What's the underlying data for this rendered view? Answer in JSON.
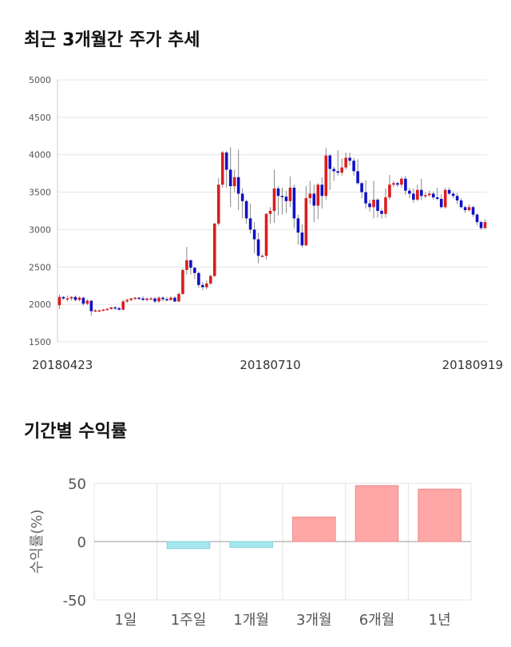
{
  "sections": {
    "price_title": "최근 3개월간 주가 추세",
    "return_title": "기간별 수익률"
  },
  "colors": {
    "up": "#dd1c1c",
    "down": "#1010c8",
    "wick": "#888888",
    "pos_bar": "#ffa6a6",
    "neg_bar": "#a6e8f0",
    "grid": "#e4e4e4"
  },
  "chart_data": [
    {
      "type": "candlestick",
      "title": "최근 3개월간 주가 추세",
      "y_ticks": [
        1500,
        2000,
        2500,
        3000,
        3500,
        4000,
        4500,
        5000
      ],
      "ylim": [
        1500,
        5000
      ],
      "x_tick_labels": [
        "20180423",
        "20180710",
        "20180919"
      ],
      "x_tick_index": [
        0,
        53,
        106
      ],
      "grid": true,
      "candles": [
        [
          1990,
          2100,
          1940,
          2130
        ],
        [
          2100,
          2080,
          2060,
          2110
        ],
        [
          2080,
          2080,
          2040,
          2120
        ],
        [
          2080,
          2100,
          2050,
          2110
        ],
        [
          2100,
          2060,
          2040,
          2120
        ],
        [
          2060,
          2090,
          2040,
          2110
        ],
        [
          2090,
          2010,
          1980,
          2100
        ],
        [
          2010,
          2050,
          1990,
          2070
        ],
        [
          2050,
          1910,
          1850,
          2060
        ],
        [
          1910,
          1920,
          1900,
          1940
        ],
        [
          1920,
          1920,
          1900,
          1930
        ],
        [
          1920,
          1930,
          1910,
          1940
        ],
        [
          1930,
          1940,
          1920,
          1950
        ],
        [
          1940,
          1960,
          1930,
          1970
        ],
        [
          1960,
          1950,
          1930,
          1980
        ],
        [
          1950,
          1930,
          1920,
          1970
        ],
        [
          1930,
          2040,
          1920,
          2060
        ],
        [
          2040,
          2060,
          2020,
          2080
        ],
        [
          2060,
          2080,
          2040,
          2090
        ],
        [
          2080,
          2090,
          2060,
          2100
        ],
        [
          2090,
          2080,
          2060,
          2100
        ],
        [
          2080,
          2060,
          2050,
          2110
        ],
        [
          2060,
          2080,
          2040,
          2090
        ],
        [
          2080,
          2080,
          2060,
          2100
        ],
        [
          2080,
          2040,
          2020,
          2100
        ],
        [
          2040,
          2090,
          2020,
          2110
        ],
        [
          2090,
          2070,
          2040,
          2110
        ],
        [
          2070,
          2060,
          2040,
          2100
        ],
        [
          2060,
          2090,
          2050,
          2110
        ],
        [
          2090,
          2040,
          2030,
          2110
        ],
        [
          2040,
          2140,
          2030,
          2160
        ],
        [
          2140,
          2460,
          2130,
          2480
        ],
        [
          2460,
          2590,
          2400,
          2770
        ],
        [
          2590,
          2490,
          2400,
          2600
        ],
        [
          2490,
          2420,
          2340,
          2500
        ],
        [
          2420,
          2260,
          2220,
          2440
        ],
        [
          2260,
          2230,
          2190,
          2300
        ],
        [
          2230,
          2280,
          2200,
          2320
        ],
        [
          2280,
          2380,
          2260,
          2400
        ],
        [
          2380,
          3080,
          2370,
          3090
        ],
        [
          3080,
          3600,
          3050,
          3690
        ],
        [
          3600,
          4030,
          3560,
          4050
        ],
        [
          4030,
          3800,
          3560,
          4050
        ],
        [
          3800,
          3580,
          3300,
          4100
        ],
        [
          3580,
          3700,
          3500,
          3800
        ],
        [
          3700,
          3480,
          3260,
          4070
        ],
        [
          3480,
          3380,
          3150,
          3550
        ],
        [
          3380,
          3150,
          3080,
          3400
        ],
        [
          3150,
          3000,
          2950,
          3350
        ],
        [
          3000,
          2870,
          2680,
          3100
        ],
        [
          2870,
          2650,
          2550,
          2960
        ],
        [
          2650,
          2650,
          2630,
          2670
        ],
        [
          2650,
          3210,
          2600,
          3220
        ],
        [
          3210,
          3250,
          3080,
          3300
        ],
        [
          3250,
          3550,
          3090,
          3800
        ],
        [
          3550,
          3450,
          3190,
          3580
        ],
        [
          3450,
          3440,
          3200,
          3560
        ],
        [
          3440,
          3380,
          3220,
          3520
        ],
        [
          3380,
          3560,
          3300,
          3710
        ],
        [
          3560,
          3150,
          3020,
          3600
        ],
        [
          3150,
          2960,
          2800,
          3200
        ],
        [
          2960,
          2790,
          2760,
          3070
        ],
        [
          2790,
          3420,
          2780,
          3580
        ],
        [
          3420,
          3480,
          3340,
          3650
        ],
        [
          3480,
          3320,
          3100,
          3600
        ],
        [
          3320,
          3600,
          3140,
          3620
        ],
        [
          3600,
          3450,
          3280,
          3700
        ],
        [
          3450,
          3990,
          3400,
          4090
        ],
        [
          3990,
          3810,
          3530,
          4010
        ],
        [
          3810,
          3780,
          3650,
          3840
        ],
        [
          3780,
          3760,
          3720,
          4060
        ],
        [
          3760,
          3830,
          3720,
          3950
        ],
        [
          3830,
          3960,
          3800,
          4030
        ],
        [
          3960,
          3920,
          3860,
          4030
        ],
        [
          3920,
          3780,
          3720,
          3960
        ],
        [
          3780,
          3620,
          3600,
          3940
        ],
        [
          3620,
          3500,
          3420,
          3640
        ],
        [
          3500,
          3350,
          3280,
          3660
        ],
        [
          3350,
          3300,
          3240,
          3400
        ],
        [
          3300,
          3400,
          3150,
          3650
        ],
        [
          3400,
          3250,
          3160,
          3420
        ],
        [
          3250,
          3210,
          3150,
          3280
        ],
        [
          3210,
          3430,
          3160,
          3550
        ],
        [
          3430,
          3600,
          3400,
          3730
        ],
        [
          3600,
          3620,
          3570,
          3650
        ],
        [
          3620,
          3600,
          3570,
          3640
        ],
        [
          3600,
          3680,
          3560,
          3700
        ],
        [
          3680,
          3520,
          3460,
          3720
        ],
        [
          3520,
          3480,
          3420,
          3560
        ],
        [
          3480,
          3400,
          3360,
          3550
        ],
        [
          3400,
          3530,
          3380,
          3600
        ],
        [
          3530,
          3450,
          3390,
          3680
        ],
        [
          3450,
          3460,
          3420,
          3500
        ],
        [
          3460,
          3480,
          3440,
          3520
        ],
        [
          3480,
          3430,
          3400,
          3510
        ],
        [
          3430,
          3410,
          3390,
          3560
        ],
        [
          3410,
          3300,
          3280,
          3470
        ],
        [
          3300,
          3530,
          3280,
          3560
        ],
        [
          3530,
          3480,
          3460,
          3560
        ],
        [
          3480,
          3450,
          3420,
          3510
        ],
        [
          3450,
          3390,
          3340,
          3490
        ],
        [
          3390,
          3300,
          3280,
          3420
        ],
        [
          3300,
          3260,
          3220,
          3320
        ],
        [
          3260,
          3300,
          3240,
          3340
        ],
        [
          3300,
          3200,
          3170,
          3320
        ],
        [
          3200,
          3100,
          3060,
          3220
        ],
        [
          3100,
          3020,
          3000,
          3120
        ],
        [
          3020,
          3100,
          3010,
          3140
        ]
      ]
    },
    {
      "type": "bar",
      "title": "기간별 수익률",
      "ylabel": "수익률(%)",
      "categories": [
        "1일",
        "1주일",
        "1개월",
        "3개월",
        "6개월",
        "1년"
      ],
      "values": [
        0,
        -6,
        -5,
        21,
        48,
        45
      ],
      "ylim": [
        -50,
        50
      ],
      "y_ticks": [
        50,
        0,
        -50
      ],
      "grid": true
    }
  ]
}
